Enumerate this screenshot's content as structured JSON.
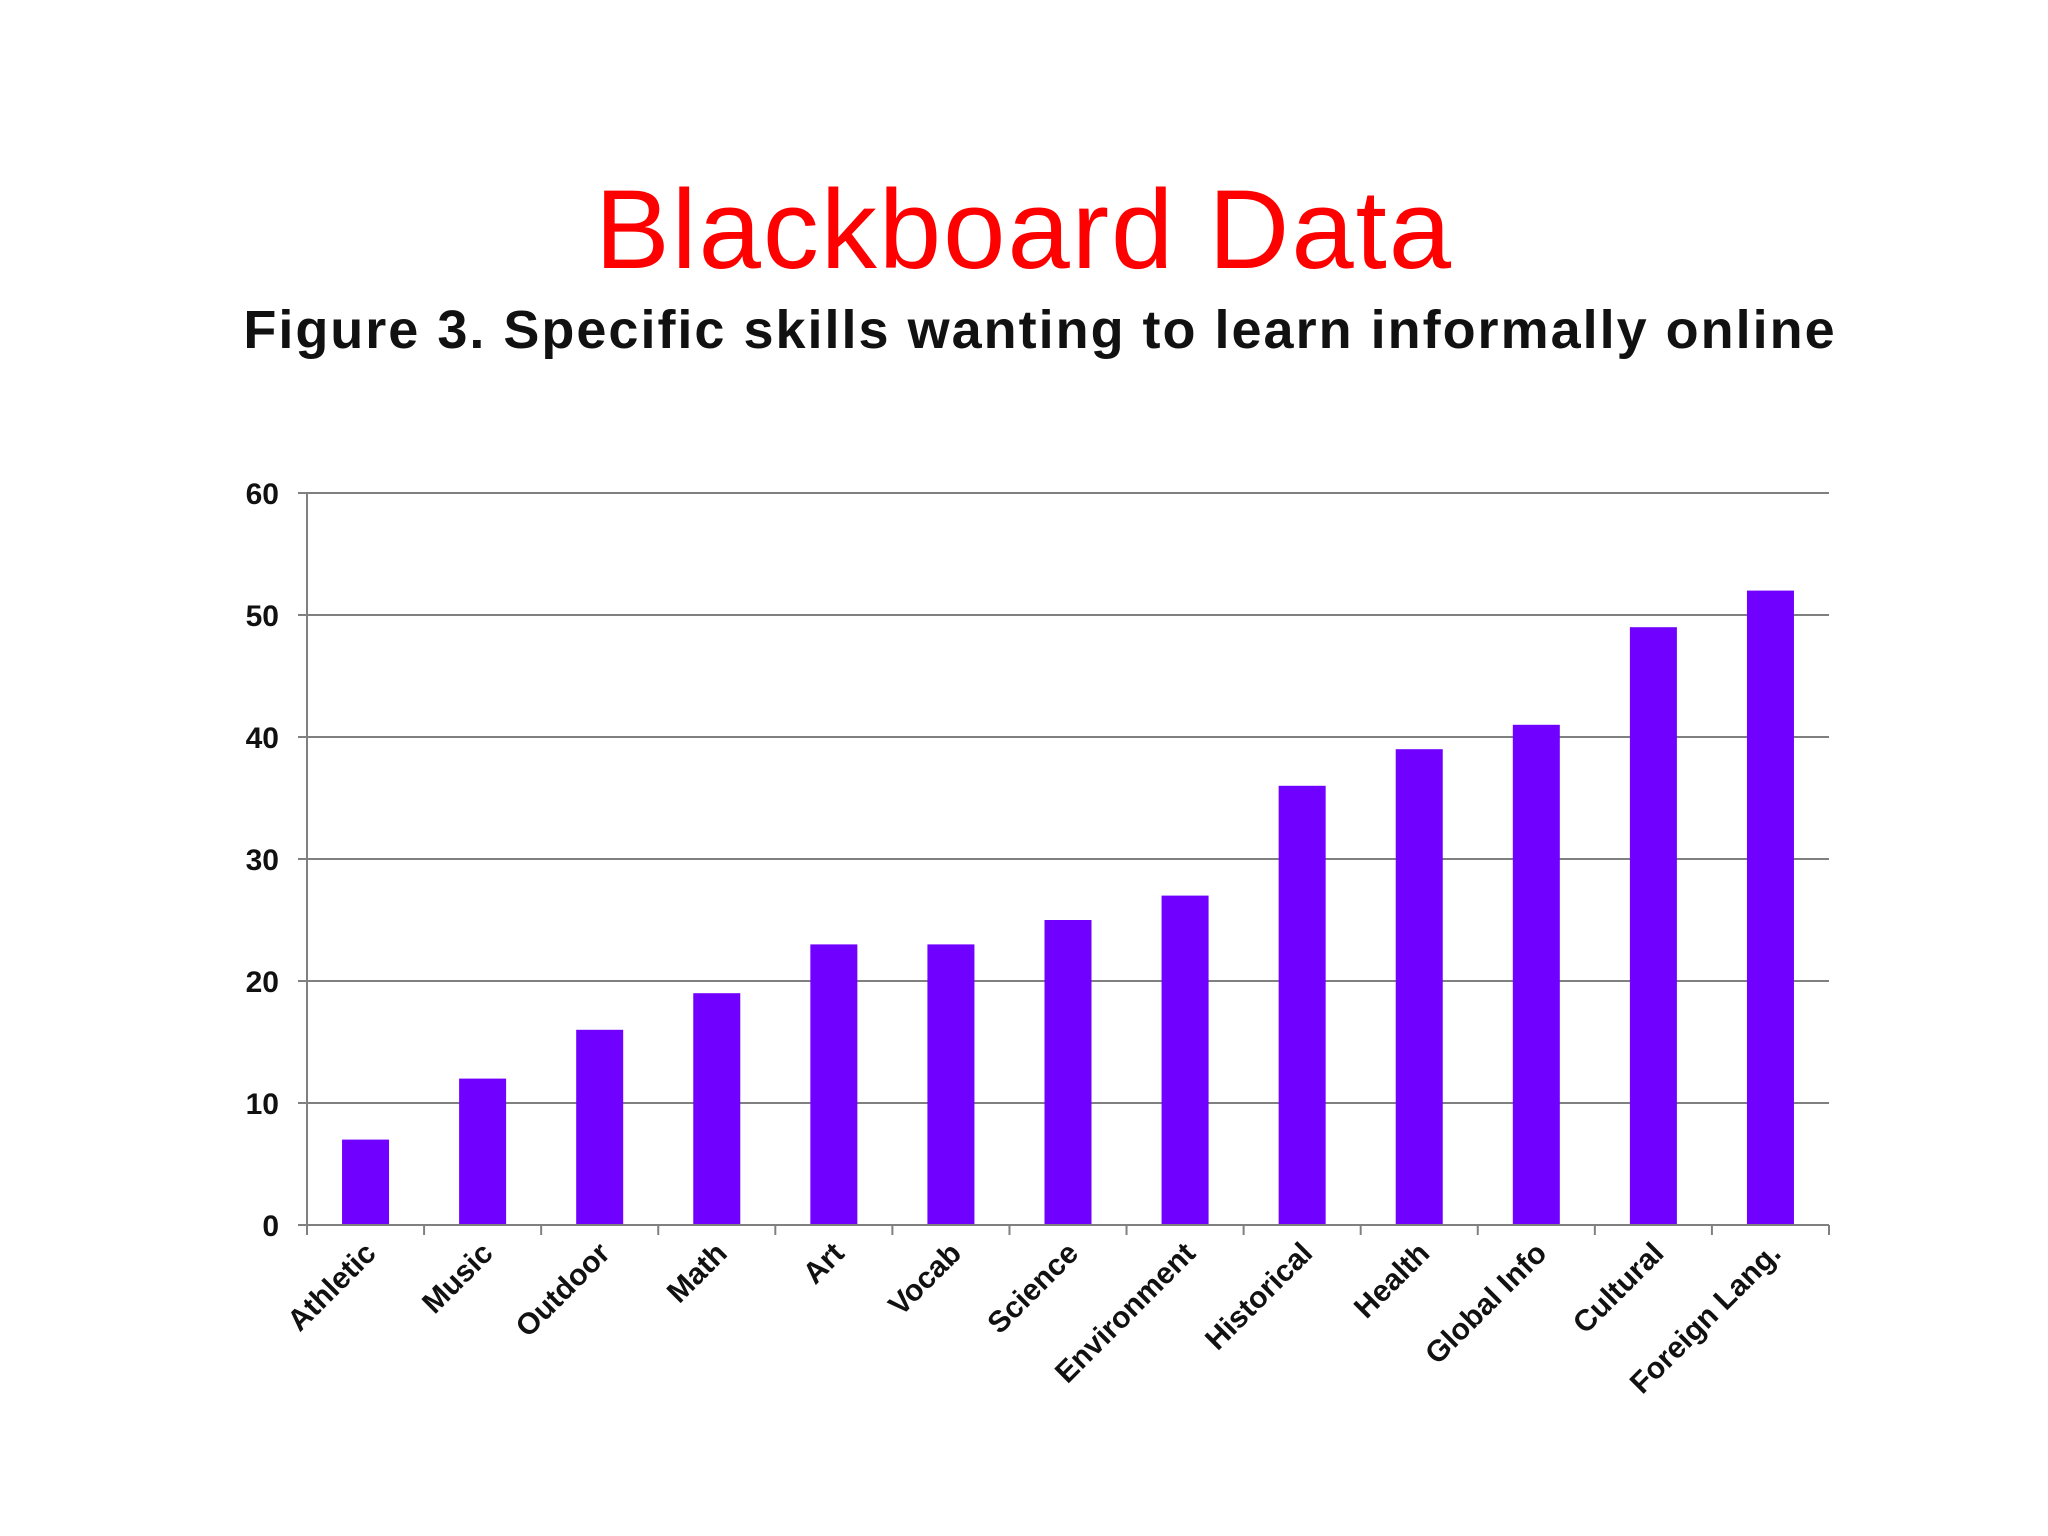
{
  "slide": {
    "title": "Blackboard Data"
  },
  "colors": {
    "title": "#ff0000",
    "bar": "#7000ff",
    "grid": "#808080",
    "text": "#111111"
  },
  "chart_data": {
    "type": "bar",
    "title": "Figure 3. Specific skills wanting to learn informally online",
    "xlabel": "",
    "ylabel": "",
    "ylim": [
      0,
      60
    ],
    "yticks": [
      0,
      10,
      20,
      30,
      40,
      50,
      60
    ],
    "grid": true,
    "legend": "none",
    "categories": [
      "Athletic",
      "Music",
      "Outdoor",
      "Math",
      "Art",
      "Vocab",
      "Science",
      "Environment",
      "Historical",
      "Health",
      "Global Info",
      "Cultural",
      "Foreign Lang."
    ],
    "values": [
      7,
      12,
      16,
      19,
      23,
      23,
      25,
      27,
      36,
      39,
      41,
      49,
      52
    ]
  }
}
